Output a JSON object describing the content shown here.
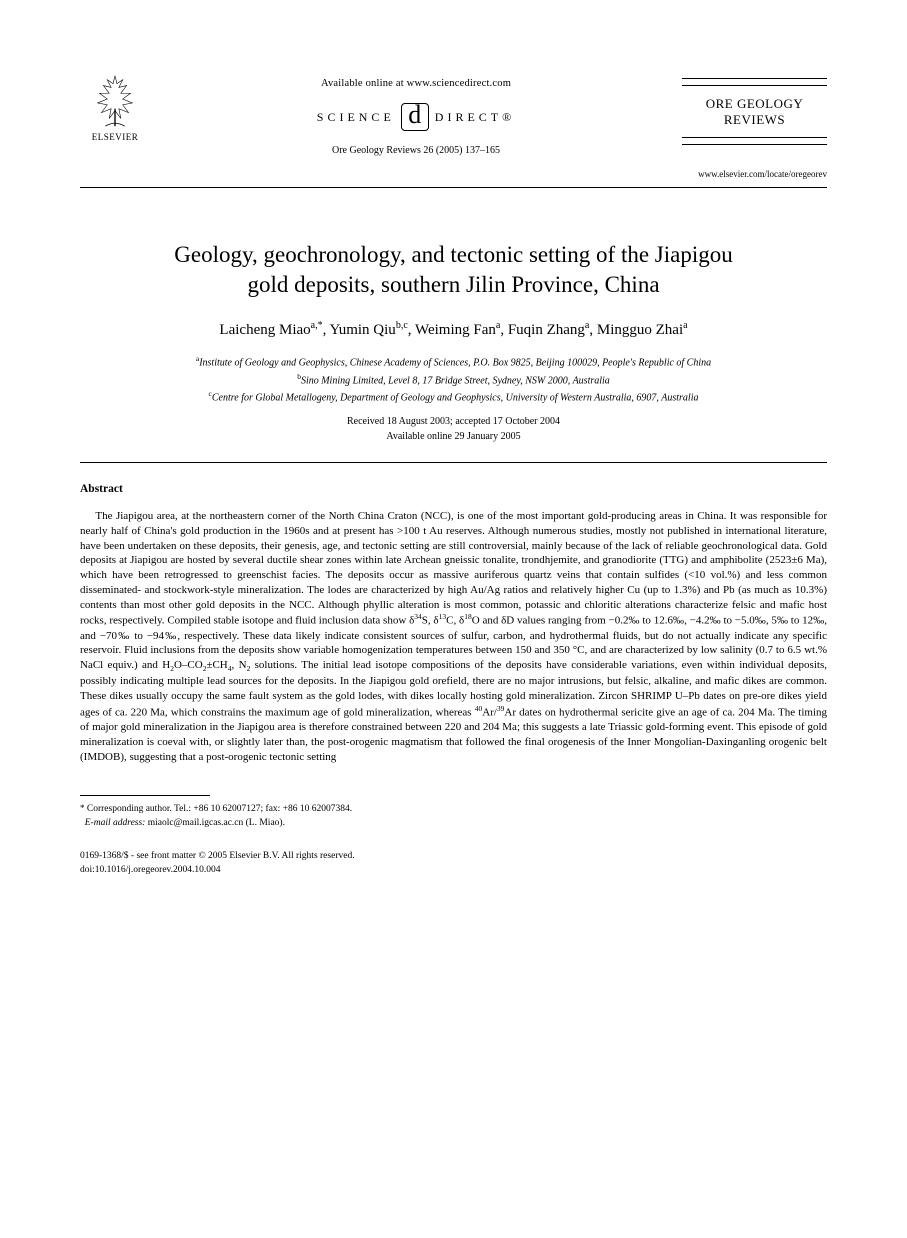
{
  "header": {
    "publisher_name": "ELSEVIER",
    "available_online": "Available online at www.sciencedirect.com",
    "sciencedirect_left": "SCIENCE",
    "sciencedirect_right": "DIRECT®",
    "journal_ref": "Ore Geology Reviews 26 (2005) 137–165",
    "journal_box_line1": "ORE GEOLOGY",
    "journal_box_line2": "REVIEWS",
    "journal_url": "www.elsevier.com/locate/oregeorev"
  },
  "article": {
    "title_line1": "Geology, geochronology, and tectonic setting of the Jiapigou",
    "title_line2": "gold deposits, southern Jilin Province, China"
  },
  "authors": {
    "a1_name": "Laicheng Miao",
    "a1_sup": "a,*",
    "a2_name": "Yumin Qiu",
    "a2_sup": "b,c",
    "a3_name": "Weiming Fan",
    "a3_sup": "a",
    "a4_name": "Fuqin Zhang",
    "a4_sup": "a",
    "a5_name": "Mingguo Zhai",
    "a5_sup": "a"
  },
  "affiliations": {
    "a_sup": "a",
    "a_text": "Institute of Geology and Geophysics, Chinese Academy of Sciences, P.O. Box 9825, Beijing 100029, People's Republic of China",
    "b_sup": "b",
    "b_text": "Sino Mining Limited, Level 8, 17 Bridge Street, Sydney, NSW 2000, Australia",
    "c_sup": "c",
    "c_text": "Centre for Global Metallogeny, Department of Geology and Geophysics, University of Western Australia, 6907, Australia"
  },
  "dates": {
    "received_accepted": "Received 18 August 2003; accepted 17 October 2004",
    "online": "Available online 29 January 2005"
  },
  "abstract": {
    "heading": "Abstract",
    "body_html": "The Jiapigou area, at the northeastern corner of the North China Craton (NCC), is one of the most important gold-producing areas in China. It was responsible for nearly half of China's gold production in the 1960s and at present has &gt;100 t Au reserves. Although numerous studies, mostly not published in international literature, have been undertaken on these deposits, their genesis, age, and tectonic setting are still controversial, mainly because of the lack of reliable geochronological data. Gold deposits at Jiapigou are hosted by several ductile shear zones within late Archean gneissic tonalite, trondhjemite, and granodiorite (TTG) and amphibolite (2523±6 Ma), which have been retrogressed to greenschist facies. The deposits occur as massive auriferous quartz veins that contain sulfides (&lt;10 vol.%) and less common disseminated- and stockwork-style mineralization. The lodes are characterized by high Au/Ag ratios and relatively higher Cu (up to 1.3%) and Pb (as much as 10.3%) contents than most other gold deposits in the NCC. Although phyllic alteration is most common, potassic and chloritic alterations characterize felsic and mafic host rocks, respectively. Compiled stable isotope and fluid inclusion data show δ<sup>34</sup>S, δ<sup>13</sup>C, δ<sup>18</sup>O and δD values ranging from −0.2‰ to 12.6‰, −4.2‰ to −5.0‰, 5‰ to 12‰, and −70‰ to −94‰, respectively. These data likely indicate consistent sources of sulfur, carbon, and hydrothermal fluids, but do not actually indicate any specific reservoir. Fluid inclusions from the deposits show variable homogenization temperatures between 150 and 350 °C, and are characterized by low salinity (0.7 to 6.5 wt.% NaCl equiv.) and H<sub>2</sub>O–CO<sub>2</sub>±CH<sub>4</sub>, N<sub>2</sub> solutions. The initial lead isotope compositions of the deposits have considerable variations, even within individual deposits, possibly indicating multiple lead sources for the deposits. In the Jiapigou gold orefield, there are no major intrusions, but felsic, alkaline, and mafic dikes are common. These dikes usually occupy the same fault system as the gold lodes, with dikes locally hosting gold mineralization. Zircon SHRIMP U–Pb dates on pre-ore dikes yield ages of ca. 220 Ma, which constrains the maximum age of gold mineralization, whereas <sup>40</sup>Ar/<sup>39</sup>Ar dates on hydrothermal sericite give an age of ca. 204 Ma. The timing of major gold mineralization in the Jiapigou area is therefore constrained between 220 and 204 Ma; this suggests a late Triassic gold-forming event. This episode of gold mineralization is coeval with, or slightly later than, the post-orogenic magmatism that followed the final orogenesis of the Inner Mongolian-Daxinganling orogenic belt (IMDOB), suggesting that a post-orogenic tectonic setting"
  },
  "footer": {
    "corr_star": "*",
    "corr_text": "Corresponding author. Tel.: +86 10 62007127; fax: +86 10 62007384.",
    "email_label": "E-mail address:",
    "email_value": "miaolc@mail.igcas.ac.cn (L. Miao).",
    "issn_line": "0169-1368/$ - see front matter © 2005 Elsevier B.V. All rights reserved.",
    "doi_line": "doi:10.1016/j.oregeorev.2004.10.004"
  },
  "colors": {
    "text": "#000000",
    "background": "#ffffff",
    "rule": "#000000"
  },
  "fonts": {
    "body_family": "Times New Roman",
    "title_size_pt": 17,
    "authors_size_pt": 11,
    "affil_size_pt": 7.5,
    "abstract_size_pt": 8.2,
    "footer_size_pt": 7
  }
}
